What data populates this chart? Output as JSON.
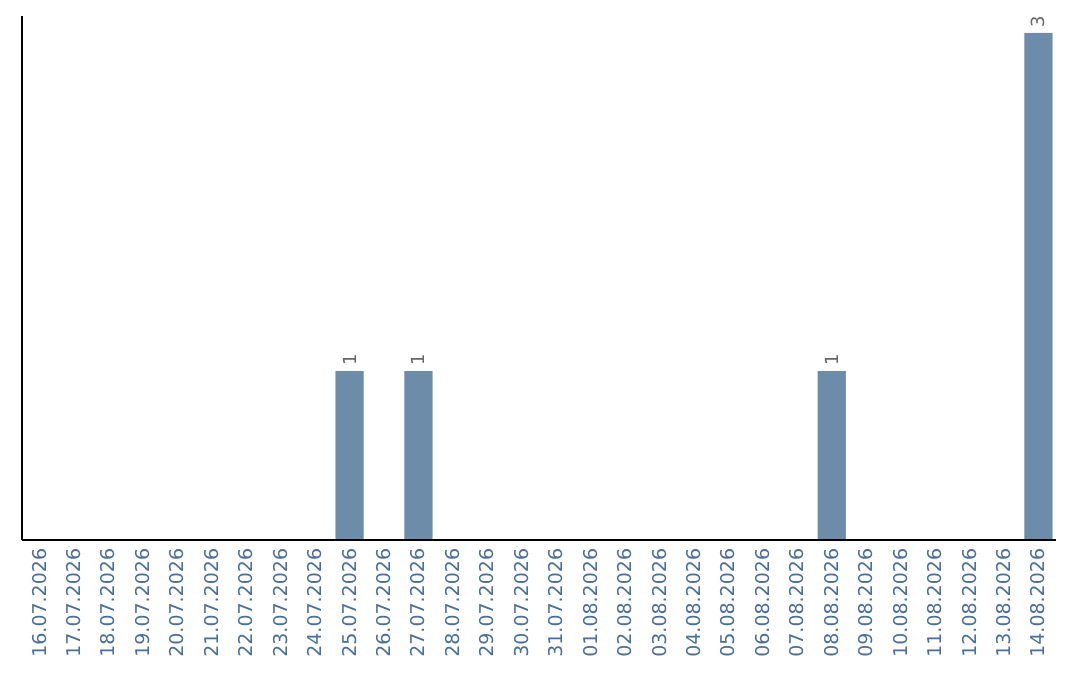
{
  "chart_data": {
    "type": "bar",
    "categories": [
      "16.07.2026",
      "17.07.2026",
      "18.07.2026",
      "19.07.2026",
      "20.07.2026",
      "21.07.2026",
      "22.07.2026",
      "23.07.2026",
      "24.07.2026",
      "25.07.2026",
      "26.07.2026",
      "27.07.2026",
      "28.07.2026",
      "29.07.2026",
      "30.07.2026",
      "31.07.2026",
      "01.08.2026",
      "02.08.2026",
      "03.08.2026",
      "04.08.2026",
      "05.08.2026",
      "06.08.2026",
      "07.08.2026",
      "08.08.2026",
      "09.08.2026",
      "10.08.2026",
      "11.08.2026",
      "12.08.2026",
      "13.08.2026",
      "14.08.2026"
    ],
    "values": [
      0,
      0,
      0,
      0,
      0,
      0,
      0,
      0,
      0,
      1,
      0,
      1,
      0,
      0,
      0,
      0,
      0,
      0,
      0,
      0,
      0,
      0,
      0,
      1,
      0,
      0,
      0,
      0,
      0,
      3
    ],
    "value_labels": [
      null,
      null,
      null,
      null,
      null,
      null,
      null,
      null,
      null,
      "1",
      null,
      "1",
      null,
      null,
      null,
      null,
      null,
      null,
      null,
      null,
      null,
      null,
      null,
      "1",
      null,
      null,
      null,
      null,
      null,
      "3"
    ],
    "color": "#6d8caa",
    "ylim": [
      0,
      3.1
    ],
    "tick_labels": "x"
  }
}
